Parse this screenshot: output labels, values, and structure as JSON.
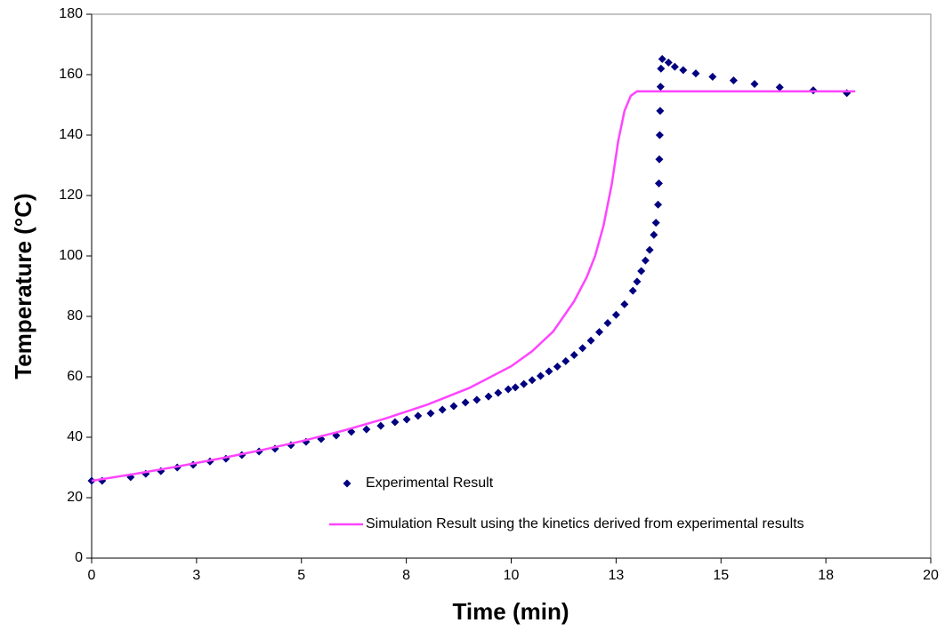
{
  "chart_data": {
    "type": "scatter",
    "x_label": "Time (min)",
    "y_label": "Temperature (°C)",
    "xlim": [
      0,
      20
    ],
    "xticks": [
      0,
      {
        "value": 2.5,
        "label": "3"
      },
      5,
      {
        "value": 7.5,
        "label": "8"
      },
      10,
      {
        "value": 12.5,
        "label": "13"
      },
      15,
      {
        "value": 17.5,
        "label": "18"
      },
      20
    ],
    "ylim": [
      0,
      180
    ],
    "yticks": [
      0,
      20,
      40,
      60,
      80,
      100,
      120,
      140,
      160,
      180
    ],
    "legend_position": "lower-center",
    "series": [
      {
        "name": "Experimental Result",
        "type": "scatter",
        "color": "#000080",
        "x": [
          0,
          0.25,
          0.93,
          1.29,
          1.65,
          2.04,
          2.42,
          2.82,
          3.2,
          3.58,
          3.99,
          4.37,
          4.75,
          5.11,
          5.47,
          5.83,
          6.19,
          6.55,
          6.89,
          7.23,
          7.51,
          7.78,
          8.08,
          8.36,
          8.63,
          8.91,
          9.18,
          9.46,
          9.69,
          9.93,
          10.1,
          10.3,
          10.5,
          10.7,
          10.9,
          11.1,
          11.3,
          11.5,
          11.7,
          11.9,
          12.1,
          12.3,
          12.5,
          12.7,
          12.9,
          13.0,
          13.1,
          13.2,
          13.3,
          13.4,
          13.45,
          13.5,
          13.52,
          13.53,
          13.54,
          13.55,
          13.56,
          13.57,
          13.6,
          13.75,
          13.9,
          14.1,
          14.4,
          14.8,
          15.3,
          15.8,
          16.4,
          17.2,
          18.0
        ],
        "values": [
          25.6,
          25.6,
          26.8,
          27.9,
          28.8,
          30,
          30.9,
          32,
          32.9,
          34.1,
          35.3,
          36.2,
          37.4,
          38.5,
          39.4,
          40.6,
          41.8,
          42.6,
          43.8,
          45,
          45.9,
          47.1,
          47.9,
          49.1,
          50.3,
          51.5,
          52.4,
          53.5,
          54.7,
          55.9,
          56.5,
          57.6,
          58.9,
          60.3,
          61.8,
          63.4,
          65.2,
          67.2,
          69.5,
          72,
          74.8,
          77.8,
          80.5,
          84,
          88.5,
          91.5,
          95,
          98.5,
          102,
          107,
          111,
          117,
          124,
          132,
          140,
          148,
          156,
          162,
          165.2,
          164,
          162.6,
          161.5,
          160.4,
          159.3,
          158.1,
          156.9,
          155.8,
          154.8,
          153.9
        ]
      },
      {
        "name": "Simulation Result using the kinetics derived from experimental results",
        "type": "line",
        "color": "#ff44ff",
        "x": [
          0,
          1,
          2,
          3,
          4,
          5,
          6,
          7,
          8,
          9,
          10,
          10.5,
          11,
          11.5,
          11.8,
          12,
          12.2,
          12.4,
          12.55,
          12.7,
          12.85,
          13,
          14,
          16,
          18.2
        ],
        "values": [
          25.6,
          27.8,
          30.2,
          32.8,
          35.6,
          38.7,
          42.2,
          46.2,
          50.8,
          56.3,
          63.5,
          68.5,
          75,
          85,
          93,
          100,
          110,
          124,
          138,
          148,
          153,
          154.5,
          154.5,
          154.5,
          154.5
        ]
      }
    ]
  }
}
